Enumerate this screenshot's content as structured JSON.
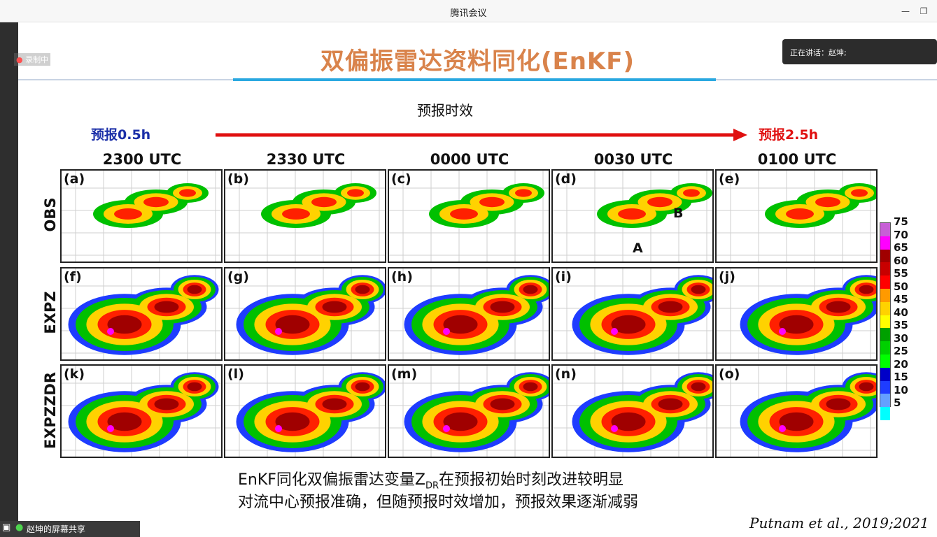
{
  "app": {
    "title": "腾讯会议",
    "minimize_icon": "minimize-icon",
    "restore_icon": "restore-icon"
  },
  "meeting": {
    "recording_label": "录制中",
    "speaking_label": "正在讲话：赵坤;",
    "share_label": "赵坤的屏幕共享"
  },
  "slide": {
    "title": "双偏振雷达资料同化(EnKF)",
    "subtitle": "预报时效",
    "start_label": "预报0.5h",
    "end_label": "预报2.5h",
    "columns": [
      "2300 UTC",
      "2330 UTC",
      "0000 UTC",
      "0030 UTC",
      "0100 UTC"
    ],
    "rows": [
      "OBS",
      "EXPZ",
      "EXPZZDR"
    ],
    "panel_labels": [
      "(a)",
      "(b)",
      "(c)",
      "(d)",
      "(e)",
      "(f)",
      "(g)",
      "(h)",
      "(i)",
      "(j)",
      "(k)",
      "(l)",
      "(m)",
      "(n)",
      "(o)"
    ],
    "annotation_a": "A",
    "annotation_b": "B",
    "colorbar_ticks": [
      "75",
      "70",
      "65",
      "60",
      "55",
      "50",
      "45",
      "40",
      "35",
      "30",
      "25",
      "20",
      "15",
      "10",
      "5"
    ],
    "colorbar_colors": [
      "#c75fd6",
      "#ff00ff",
      "#a00000",
      "#c80000",
      "#ff0000",
      "#ff9a00",
      "#ffd200",
      "#ffff00",
      "#00a000",
      "#00d000",
      "#00ff00",
      "#0000c8",
      "#1e3cff",
      "#64a0ff",
      "#00ffff"
    ],
    "note_line1_prefix": "EnKF同化双偏振雷达变量Z",
    "note_line1_sub": "DR",
    "note_line1_suffix": "在预报初始时刻改进较明显",
    "note_line2": "对流中心预报准确，但随预报时效增加，预报效果逐渐减弱",
    "citation": "Putnam et al., 2019;2021"
  }
}
